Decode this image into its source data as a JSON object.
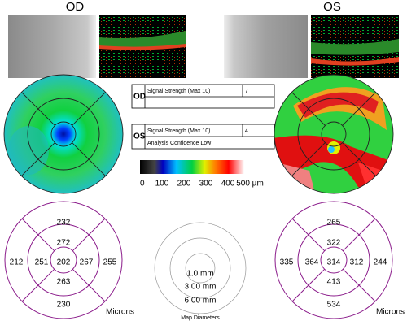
{
  "header": {
    "od": "OD",
    "os": "OS"
  },
  "od_info": {
    "label": "OD",
    "signal_label": "Signal Strength (Max 10)",
    "signal": 7
  },
  "os_info": {
    "label": "OS",
    "signal_label": "Signal Strength (Max 10)",
    "signal": 4,
    "note": "Analysis Confidence Low"
  },
  "color_scale": {
    "ticks": [
      "0",
      "100",
      "200",
      "300",
      "400",
      "500 µm"
    ]
  },
  "od_grid": {
    "outer_top": 232,
    "inner_top": 272,
    "outer_left": 212,
    "inner_left": 251,
    "center": 202,
    "inner_right": 267,
    "outer_right": 255,
    "inner_bottom": 263,
    "outer_bottom": 230,
    "unit": "Microns"
  },
  "os_grid": {
    "outer_top": 265,
    "inner_top": 322,
    "outer_left": 335,
    "inner_left": 364,
    "center": 314,
    "inner_right": 312,
    "outer_right": 244,
    "inner_bottom": 413,
    "outer_bottom": 534,
    "unit": "Microns"
  },
  "map_diameters": {
    "inner": "1.0 mm",
    "middle": "3.00 mm",
    "outer": "6.00 mm",
    "title": "Map Diameters"
  }
}
